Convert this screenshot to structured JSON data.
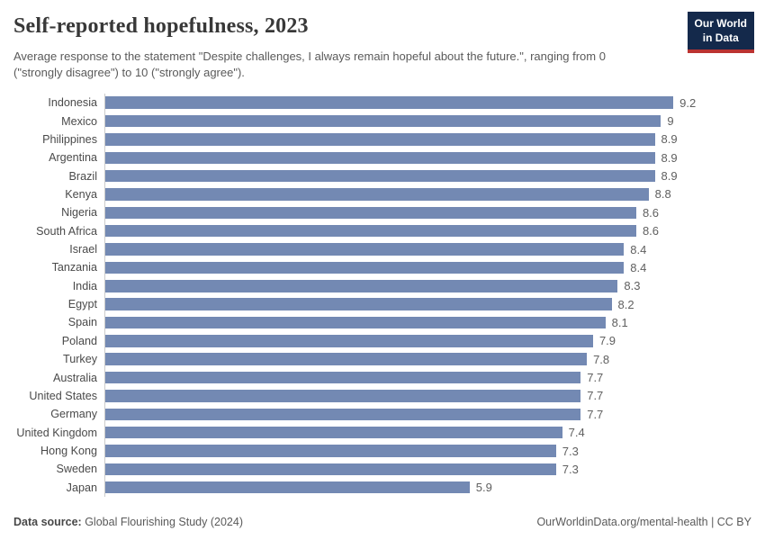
{
  "header": {
    "title": "Self-reported hopefulness, 2023",
    "subtitle": "Average response to the statement \"Despite challenges, I always remain hopeful about the future.\", ranging from 0 (\"strongly disagree\") to 10 (\"strongly agree\").",
    "logo_line1": "Our World",
    "logo_line2": "in Data"
  },
  "chart_data": {
    "type": "bar",
    "orientation": "horizontal",
    "title": "Self-reported hopefulness, 2023",
    "xlabel": "",
    "ylabel": "",
    "xlim": [
      0,
      9.2
    ],
    "grid": false,
    "legend": false,
    "bar_color": "#7389b3",
    "axis_line_color": "#cbcbcb",
    "categories": [
      "Indonesia",
      "Mexico",
      "Philippines",
      "Argentina",
      "Brazil",
      "Kenya",
      "Nigeria",
      "South Africa",
      "Israel",
      "Tanzania",
      "India",
      "Egypt",
      "Spain",
      "Poland",
      "Turkey",
      "Australia",
      "United States",
      "Germany",
      "United Kingdom",
      "Hong Kong",
      "Sweden",
      "Japan"
    ],
    "values": [
      9.2,
      9,
      8.9,
      8.9,
      8.9,
      8.8,
      8.6,
      8.6,
      8.4,
      8.4,
      8.3,
      8.2,
      8.1,
      7.9,
      7.8,
      7.7,
      7.7,
      7.7,
      7.4,
      7.3,
      7.3,
      5.9
    ]
  },
  "footer": {
    "data_source_label": "Data source:",
    "data_source_value": " Global Flourishing Study (2024)",
    "attribution": "OurWorldinData.org/mental-health | CC BY"
  }
}
